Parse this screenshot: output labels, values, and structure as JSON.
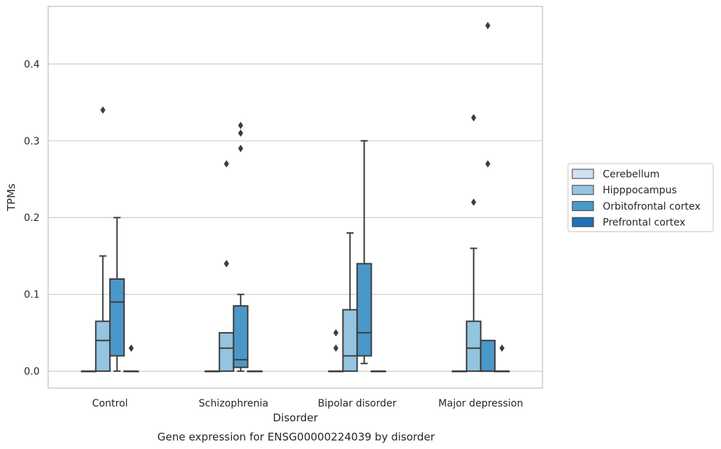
{
  "chart_data": {
    "type": "box",
    "title": "",
    "caption": "Gene expression for ENSG00000224039 by disorder",
    "xlabel": "Disorder",
    "ylabel": "TPMs",
    "ylim": [
      -0.022,
      0.475
    ],
    "yticks": [
      0.0,
      0.1,
      0.2,
      0.3,
      0.4
    ],
    "ytick_labels": [
      "0.0",
      "0.1",
      "0.2",
      "0.3",
      "0.4"
    ],
    "grid": "horizontal",
    "legend_position": "right",
    "categories": [
      "Control",
      "Schizophrenia",
      "Bipolar disorder",
      "Major depression"
    ],
    "series": [
      {
        "name": "Cerebellum",
        "color": "#d0e1f2",
        "boxes": [
          {
            "q1": 0.0,
            "median": 0.0,
            "q3": 0.0,
            "whisker_low": 0.0,
            "whisker_high": 0.0,
            "outliers": []
          },
          {
            "q1": 0.0,
            "median": 0.0,
            "q3": 0.0,
            "whisker_low": 0.0,
            "whisker_high": 0.0,
            "outliers": []
          },
          {
            "q1": 0.0,
            "median": 0.0,
            "q3": 0.0,
            "whisker_low": 0.0,
            "whisker_high": 0.0,
            "outliers": [
              0.03,
              0.05
            ]
          },
          {
            "q1": 0.0,
            "median": 0.0,
            "q3": 0.0,
            "whisker_low": 0.0,
            "whisker_high": 0.0,
            "outliers": []
          }
        ]
      },
      {
        "name": "Hipppocampus",
        "color": "#94c4df",
        "boxes": [
          {
            "q1": 0.0,
            "median": 0.04,
            "q3": 0.065,
            "whisker_low": 0.0,
            "whisker_high": 0.15,
            "outliers": [
              0.34
            ]
          },
          {
            "q1": 0.0,
            "median": 0.03,
            "q3": 0.05,
            "whisker_low": 0.0,
            "whisker_high": 0.05,
            "outliers": [
              0.14,
              0.14,
              0.27
            ]
          },
          {
            "q1": 0.0,
            "median": 0.02,
            "q3": 0.08,
            "whisker_low": 0.0,
            "whisker_high": 0.18,
            "outliers": []
          },
          {
            "q1": 0.0,
            "median": 0.03,
            "q3": 0.065,
            "whisker_low": 0.0,
            "whisker_high": 0.16,
            "outliers": [
              0.22,
              0.33
            ]
          }
        ]
      },
      {
        "name": "Orbitofrontal cortex",
        "color": "#4a98c9",
        "boxes": [
          {
            "q1": 0.02,
            "median": 0.09,
            "q3": 0.12,
            "whisker_low": 0.0,
            "whisker_high": 0.2,
            "outliers": []
          },
          {
            "q1": 0.005,
            "median": 0.015,
            "q3": 0.085,
            "whisker_low": 0.0,
            "whisker_high": 0.1,
            "outliers": [
              0.29,
              0.31,
              0.32
            ]
          },
          {
            "q1": 0.02,
            "median": 0.05,
            "q3": 0.14,
            "whisker_low": 0.01,
            "whisker_high": 0.3,
            "outliers": []
          },
          {
            "q1": 0.0,
            "median": 0.0,
            "q3": 0.04,
            "whisker_low": 0.0,
            "whisker_high": 0.04,
            "outliers": [
              0.27,
              0.45
            ]
          }
        ]
      },
      {
        "name": "Prefrontal cortex",
        "color": "#2171b5",
        "boxes": [
          {
            "q1": 0.0,
            "median": 0.0,
            "q3": 0.0,
            "whisker_low": 0.0,
            "whisker_high": 0.0,
            "outliers": [
              0.03
            ]
          },
          {
            "q1": 0.0,
            "median": 0.0,
            "q3": 0.0,
            "whisker_low": 0.0,
            "whisker_high": 0.0,
            "outliers": []
          },
          {
            "q1": 0.0,
            "median": 0.0,
            "q3": 0.0,
            "whisker_low": 0.0,
            "whisker_high": 0.0,
            "outliers": []
          },
          {
            "q1": 0.0,
            "median": 0.0,
            "q3": 0.0,
            "whisker_low": 0.0,
            "whisker_high": 0.0,
            "outliers": [
              0.03
            ]
          }
        ]
      }
    ]
  }
}
